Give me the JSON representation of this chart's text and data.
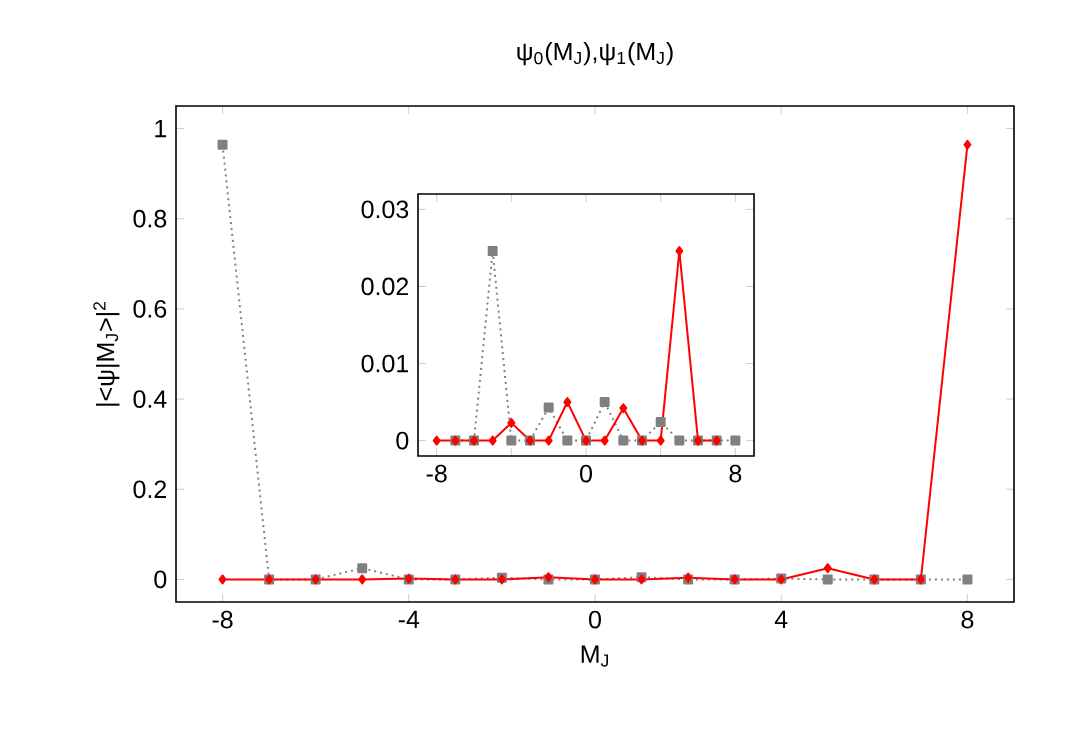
{
  "chart_data": [
    {
      "type": "line",
      "title": "ψ$_{0}$(M$_{J}$),ψ$_{1}$(M$_{J}$)",
      "xlabel": "M$_{J}$",
      "ylabel": "|<ψ|M$_{J}$>|$^{2}$",
      "x": [
        -8,
        -7,
        -6,
        -5,
        -4,
        -3,
        -2,
        -1,
        0,
        1,
        2,
        3,
        4,
        5,
        6,
        7,
        8
      ],
      "series": [
        {
          "color": "#808080",
          "marker": "square",
          "line_style": "dotted",
          "values": [
            0.964,
            0,
            0,
            0.025,
            0,
            0,
            0.004,
            0,
            0,
            0.005,
            0,
            0,
            0.002,
            0,
            0,
            0,
            0
          ]
        },
        {
          "color": "#ff0000",
          "marker": "diamond",
          "line_style": "solid",
          "values": [
            0,
            0,
            0,
            0,
            0.002,
            0,
            0,
            0.005,
            0,
            0,
            0.004,
            0,
            0,
            0.025,
            0,
            0,
            0.964
          ]
        }
      ],
      "xlim": [
        -9,
        9
      ],
      "ylim": [
        -0.05,
        1.05
      ],
      "xticks": [
        -8,
        -4,
        0,
        4,
        8
      ],
      "yticks": [
        0,
        0.2,
        0.4,
        0.6,
        0.8,
        1
      ]
    },
    {
      "type": "line",
      "x": [
        -8,
        -7,
        -6,
        -5,
        -4,
        -3,
        -2,
        -1,
        0,
        1,
        2,
        3,
        4,
        5,
        6,
        7,
        8
      ],
      "series": [
        {
          "color": "#808080",
          "marker": "square",
          "line_style": "dotted",
          "values": [
            null,
            0,
            0,
            0.0246,
            0,
            0,
            0.0043,
            0,
            0,
            0.005,
            0,
            0,
            0.0024,
            0,
            0,
            0,
            0
          ]
        },
        {
          "color": "#ff0000",
          "marker": "diamond",
          "line_style": "solid",
          "values": [
            0,
            0,
            0,
            0,
            0.0023,
            0,
            0,
            0.005,
            0,
            0,
            0.0042,
            0,
            0,
            0.0246,
            0,
            0,
            null
          ]
        }
      ],
      "xlim": [
        -9,
        9
      ],
      "ylim": [
        -0.002,
        0.032
      ],
      "xticks": [
        -8,
        {
          "value": -4,
          "label": null
        },
        0,
        {
          "value": 4,
          "label": null
        },
        8
      ],
      "yticks": [
        0,
        0.01,
        0.02,
        0.03
      ]
    }
  ]
}
